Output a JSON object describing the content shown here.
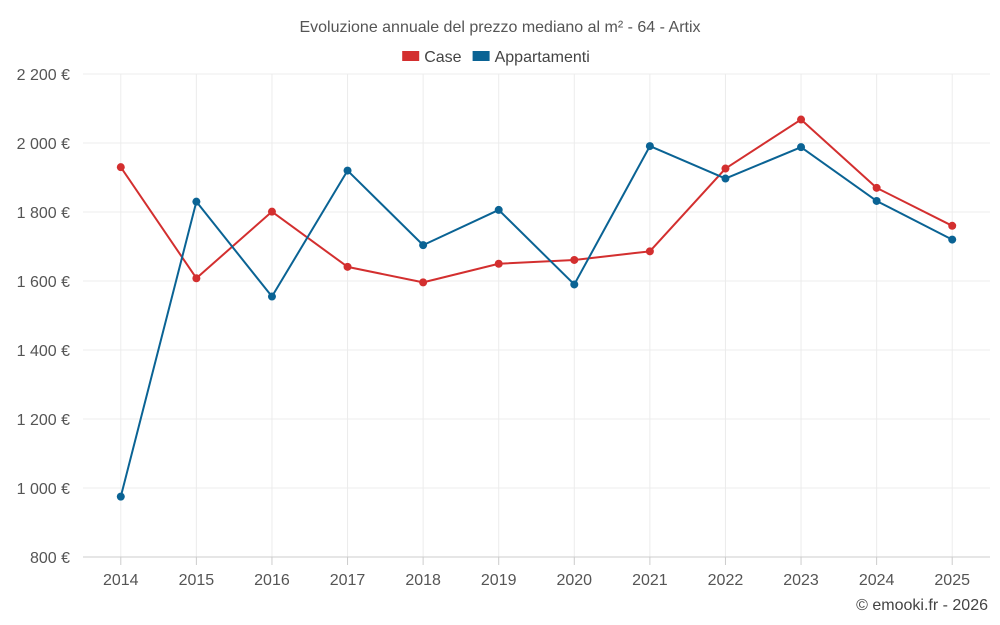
{
  "chart_data": {
    "type": "line",
    "title": "Evoluzione annuale del prezzo mediano al m² - 64 - Artix",
    "categories": [
      "2014",
      "2015",
      "2016",
      "2017",
      "2018",
      "2019",
      "2020",
      "2021",
      "2022",
      "2023",
      "2024",
      "2025"
    ],
    "series": [
      {
        "name": "Case",
        "color": "#d32f2f",
        "values": [
          1930,
          1608,
          1801,
          1641,
          1596,
          1650,
          1661,
          1686,
          1926,
          2068,
          1870,
          1760
        ]
      },
      {
        "name": "Appartamenti",
        "color": "#0a6394",
        "values": [
          975,
          1830,
          1555,
          1920,
          1704,
          1806,
          1590,
          1991,
          1897,
          1988,
          1832,
          1720
        ]
      }
    ],
    "ylim": [
      800,
      2200
    ],
    "yticks": [
      800,
      1000,
      1200,
      1400,
      1600,
      1800,
      2000,
      2200
    ],
    "ytick_labels": [
      "800 €",
      "1 000 €",
      "1 200 €",
      "1 400 €",
      "1 600 €",
      "1 800 €",
      "2 000 €",
      "2 200 €"
    ],
    "legend_position": "top-center",
    "grid": true
  },
  "credit": "© emooki.fr - 2026"
}
